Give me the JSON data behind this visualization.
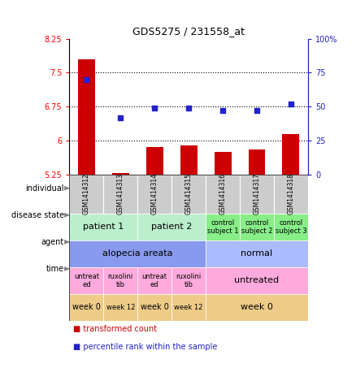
{
  "title": "GDS5275 / 231558_at",
  "samples": [
    "GSM1414312",
    "GSM1414313",
    "GSM1414314",
    "GSM1414315",
    "GSM1414316",
    "GSM1414317",
    "GSM1414318"
  ],
  "bar_values": [
    7.8,
    5.28,
    5.87,
    5.9,
    5.75,
    5.8,
    6.15
  ],
  "dot_percentiles": [
    70,
    42,
    49,
    49,
    47,
    47,
    52
  ],
  "ylim_left": [
    5.25,
    8.25
  ],
  "ylim_right": [
    0,
    100
  ],
  "yticks_left": [
    5.25,
    6.0,
    6.75,
    7.5,
    8.25
  ],
  "yticks_left_labels": [
    "5.25",
    "6",
    "6.75",
    "7.5",
    "8.25"
  ],
  "yticks_right": [
    0,
    25,
    50,
    75,
    100
  ],
  "yticks_right_labels": [
    "0",
    "25",
    "50",
    "75",
    "100%"
  ],
  "hlines": [
    6.0,
    6.75,
    7.5
  ],
  "bar_color": "#cc0000",
  "dot_color": "#2222cc",
  "bar_width": 0.5,
  "metadata_rows": [
    {
      "label": "individual",
      "groups": [
        {
          "text": "patient 1",
          "span": [
            0,
            2
          ],
          "color": "#bbeecc",
          "fontsize": 8
        },
        {
          "text": "patient 2",
          "span": [
            2,
            4
          ],
          "color": "#bbeecc",
          "fontsize": 8
        },
        {
          "text": "control\nsubject 1",
          "span": [
            4,
            5
          ],
          "color": "#88ee88",
          "fontsize": 6
        },
        {
          "text": "control\nsubject 2",
          "span": [
            5,
            6
          ],
          "color": "#88ee88",
          "fontsize": 6
        },
        {
          "text": "control\nsubject 3",
          "span": [
            6,
            7
          ],
          "color": "#88ee88",
          "fontsize": 6
        }
      ]
    },
    {
      "label": "disease state",
      "groups": [
        {
          "text": "alopecia areata",
          "span": [
            0,
            4
          ],
          "color": "#8899ee",
          "fontsize": 8
        },
        {
          "text": "normal",
          "span": [
            4,
            7
          ],
          "color": "#aabbff",
          "fontsize": 8
        }
      ]
    },
    {
      "label": "agent",
      "groups": [
        {
          "text": "untreat\ned",
          "span": [
            0,
            1
          ],
          "color": "#ffaadd",
          "fontsize": 6
        },
        {
          "text": "ruxolini\ntib",
          "span": [
            1,
            2
          ],
          "color": "#ffaadd",
          "fontsize": 6
        },
        {
          "text": "untreat\ned",
          "span": [
            2,
            3
          ],
          "color": "#ffaadd",
          "fontsize": 6
        },
        {
          "text": "ruxolini\ntib",
          "span": [
            3,
            4
          ],
          "color": "#ffaadd",
          "fontsize": 6
        },
        {
          "text": "untreated",
          "span": [
            4,
            7
          ],
          "color": "#ffaadd",
          "fontsize": 8
        }
      ]
    },
    {
      "label": "time",
      "groups": [
        {
          "text": "week 0",
          "span": [
            0,
            1
          ],
          "color": "#eecc88",
          "fontsize": 7
        },
        {
          "text": "week 12",
          "span": [
            1,
            2
          ],
          "color": "#eecc88",
          "fontsize": 6
        },
        {
          "text": "week 0",
          "span": [
            2,
            3
          ],
          "color": "#eecc88",
          "fontsize": 7
        },
        {
          "text": "week 12",
          "span": [
            3,
            4
          ],
          "color": "#eecc88",
          "fontsize": 6
        },
        {
          "text": "week 0",
          "span": [
            4,
            7
          ],
          "color": "#eecc88",
          "fontsize": 8
        }
      ]
    }
  ],
  "legend_items": [
    {
      "label": "transformed count",
      "color": "#cc0000"
    },
    {
      "label": "percentile rank within the sample",
      "color": "#2222cc"
    }
  ],
  "sample_row_color": "#cccccc",
  "chart_bg": "#ffffff"
}
